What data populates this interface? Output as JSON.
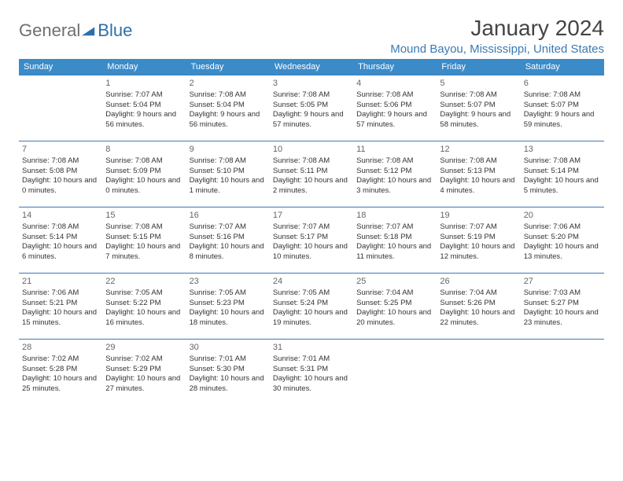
{
  "logo": {
    "general": "General",
    "blue": "Blue"
  },
  "title": {
    "month": "January 2024",
    "location": "Mound Bayou, Mississippi, United States"
  },
  "colors": {
    "header_bg": "#3b8bc9",
    "header_text": "#ffffff",
    "border": "#3a7ab5",
    "location_text": "#3a7ab5",
    "logo_gray": "#6f6f6f",
    "logo_blue": "#2f6fa8",
    "body_text": "#333333"
  },
  "dow": [
    "Sunday",
    "Monday",
    "Tuesday",
    "Wednesday",
    "Thursday",
    "Friday",
    "Saturday"
  ],
  "weeks": [
    [
      null,
      {
        "n": "1",
        "sr": "7:07 AM",
        "ss": "5:04 PM",
        "dl": "9 hours and 56 minutes."
      },
      {
        "n": "2",
        "sr": "7:08 AM",
        "ss": "5:04 PM",
        "dl": "9 hours and 56 minutes."
      },
      {
        "n": "3",
        "sr": "7:08 AM",
        "ss": "5:05 PM",
        "dl": "9 hours and 57 minutes."
      },
      {
        "n": "4",
        "sr": "7:08 AM",
        "ss": "5:06 PM",
        "dl": "9 hours and 57 minutes."
      },
      {
        "n": "5",
        "sr": "7:08 AM",
        "ss": "5:07 PM",
        "dl": "9 hours and 58 minutes."
      },
      {
        "n": "6",
        "sr": "7:08 AM",
        "ss": "5:07 PM",
        "dl": "9 hours and 59 minutes."
      }
    ],
    [
      {
        "n": "7",
        "sr": "7:08 AM",
        "ss": "5:08 PM",
        "dl": "10 hours and 0 minutes."
      },
      {
        "n": "8",
        "sr": "7:08 AM",
        "ss": "5:09 PM",
        "dl": "10 hours and 0 minutes."
      },
      {
        "n": "9",
        "sr": "7:08 AM",
        "ss": "5:10 PM",
        "dl": "10 hours and 1 minute."
      },
      {
        "n": "10",
        "sr": "7:08 AM",
        "ss": "5:11 PM",
        "dl": "10 hours and 2 minutes."
      },
      {
        "n": "11",
        "sr": "7:08 AM",
        "ss": "5:12 PM",
        "dl": "10 hours and 3 minutes."
      },
      {
        "n": "12",
        "sr": "7:08 AM",
        "ss": "5:13 PM",
        "dl": "10 hours and 4 minutes."
      },
      {
        "n": "13",
        "sr": "7:08 AM",
        "ss": "5:14 PM",
        "dl": "10 hours and 5 minutes."
      }
    ],
    [
      {
        "n": "14",
        "sr": "7:08 AM",
        "ss": "5:14 PM",
        "dl": "10 hours and 6 minutes."
      },
      {
        "n": "15",
        "sr": "7:08 AM",
        "ss": "5:15 PM",
        "dl": "10 hours and 7 minutes."
      },
      {
        "n": "16",
        "sr": "7:07 AM",
        "ss": "5:16 PM",
        "dl": "10 hours and 8 minutes."
      },
      {
        "n": "17",
        "sr": "7:07 AM",
        "ss": "5:17 PM",
        "dl": "10 hours and 10 minutes."
      },
      {
        "n": "18",
        "sr": "7:07 AM",
        "ss": "5:18 PM",
        "dl": "10 hours and 11 minutes."
      },
      {
        "n": "19",
        "sr": "7:07 AM",
        "ss": "5:19 PM",
        "dl": "10 hours and 12 minutes."
      },
      {
        "n": "20",
        "sr": "7:06 AM",
        "ss": "5:20 PM",
        "dl": "10 hours and 13 minutes."
      }
    ],
    [
      {
        "n": "21",
        "sr": "7:06 AM",
        "ss": "5:21 PM",
        "dl": "10 hours and 15 minutes."
      },
      {
        "n": "22",
        "sr": "7:05 AM",
        "ss": "5:22 PM",
        "dl": "10 hours and 16 minutes."
      },
      {
        "n": "23",
        "sr": "7:05 AM",
        "ss": "5:23 PM",
        "dl": "10 hours and 18 minutes."
      },
      {
        "n": "24",
        "sr": "7:05 AM",
        "ss": "5:24 PM",
        "dl": "10 hours and 19 minutes."
      },
      {
        "n": "25",
        "sr": "7:04 AM",
        "ss": "5:25 PM",
        "dl": "10 hours and 20 minutes."
      },
      {
        "n": "26",
        "sr": "7:04 AM",
        "ss": "5:26 PM",
        "dl": "10 hours and 22 minutes."
      },
      {
        "n": "27",
        "sr": "7:03 AM",
        "ss": "5:27 PM",
        "dl": "10 hours and 23 minutes."
      }
    ],
    [
      {
        "n": "28",
        "sr": "7:02 AM",
        "ss": "5:28 PM",
        "dl": "10 hours and 25 minutes."
      },
      {
        "n": "29",
        "sr": "7:02 AM",
        "ss": "5:29 PM",
        "dl": "10 hours and 27 minutes."
      },
      {
        "n": "30",
        "sr": "7:01 AM",
        "ss": "5:30 PM",
        "dl": "10 hours and 28 minutes."
      },
      {
        "n": "31",
        "sr": "7:01 AM",
        "ss": "5:31 PM",
        "dl": "10 hours and 30 minutes."
      },
      null,
      null,
      null
    ]
  ],
  "labels": {
    "sunrise": "Sunrise: ",
    "sunset": "Sunset: ",
    "daylight": "Daylight: "
  }
}
